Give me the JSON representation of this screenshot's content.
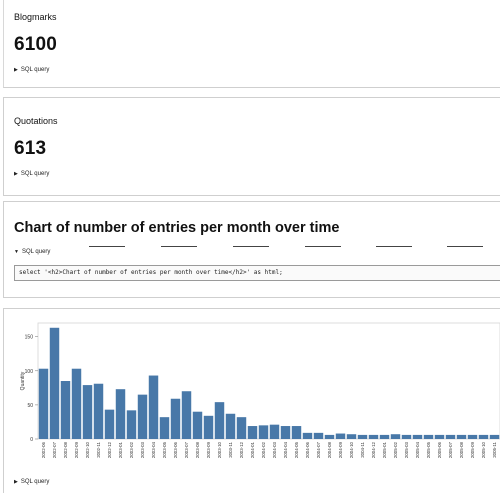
{
  "blogmarks": {
    "label": "Blogmarks",
    "count": "6100",
    "sql_toggle": "SQL query"
  },
  "quotations": {
    "label": "Quotations",
    "count": "613",
    "sql_toggle": "SQL query"
  },
  "chart_section": {
    "title": "Chart of number of entries per month over time",
    "sql_toggle": "SQL query",
    "sql_text": "select '<h2>Chart of number of entries per month over time</h2>' as html;"
  },
  "chart_footer": {
    "sql_toggle": "SQL query"
  },
  "colors": {
    "bar": "#4878a8",
    "accent_text": "#111111"
  },
  "chart_data": {
    "type": "bar",
    "title": "",
    "xlabel": "",
    "ylabel": "Quantity",
    "ylim": [
      0,
      170
    ],
    "yticks": [
      0,
      50,
      100,
      150
    ],
    "categories": [
      "2002-06",
      "2002-07",
      "2002-08",
      "2002-09",
      "2002-10",
      "2002-11",
      "2002-12",
      "2003-01",
      "2003-02",
      "2003-03",
      "2003-04",
      "2003-05",
      "2003-06",
      "2003-07",
      "2003-08",
      "2003-09",
      "2003-10",
      "2003-11",
      "2003-12",
      "2004-01",
      "2004-02",
      "2004-03",
      "2004-04",
      "2004-05",
      "2004-06",
      "2004-07",
      "2004-08",
      "2004-09",
      "2004-10",
      "2004-11",
      "2004-12",
      "2005-01",
      "2005-02",
      "2005-03",
      "2005-04",
      "2005-05",
      "2005-06",
      "2005-07",
      "2005-08",
      "2005-09",
      "2005-10",
      "2005-11"
    ],
    "values": [
      103,
      163,
      85,
      103,
      79,
      81,
      43,
      73,
      42,
      65,
      93,
      32,
      59,
      70,
      40,
      34,
      54,
      37,
      32,
      19,
      20,
      21,
      19,
      19,
      9,
      9,
      6,
      8,
      7,
      6,
      6,
      6,
      7,
      6,
      6,
      6,
      6,
      6,
      6,
      6,
      6,
      6
    ]
  }
}
